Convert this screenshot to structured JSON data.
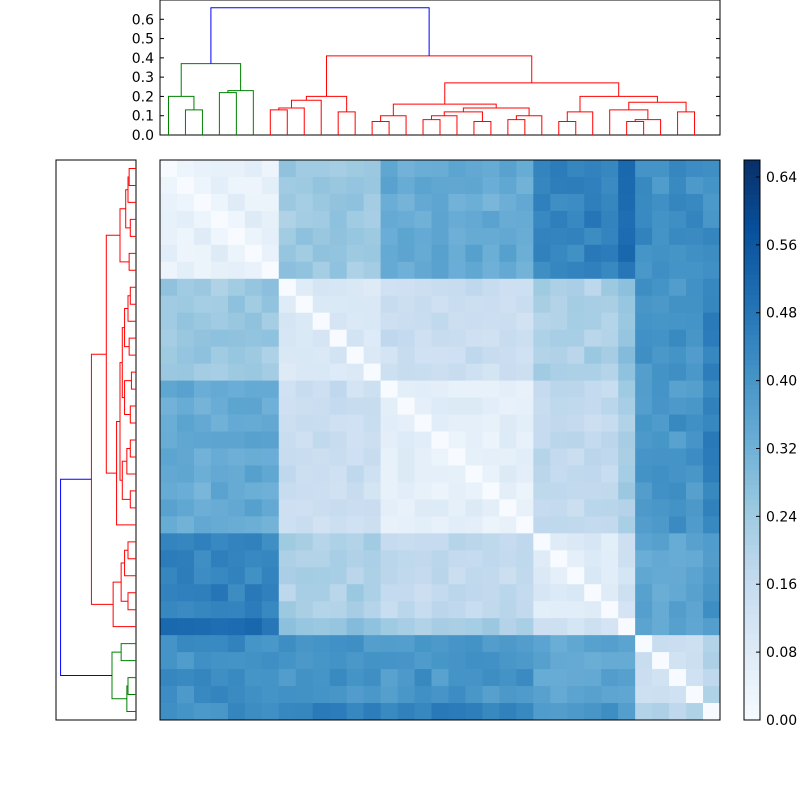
{
  "chart_data": [
    {
      "type": "dendrogram",
      "orientation": "top",
      "yticks": [
        "0.0",
        "0.1",
        "0.2",
        "0.3",
        "0.4",
        "0.5",
        "0.6"
      ],
      "ylim": [
        0,
        0.7
      ],
      "leaf_count": 33,
      "colors": {
        "blue": "#0000ff",
        "green": "#008000",
        "red": "#ff0000"
      },
      "merges": [
        {
          "l": 0,
          "r": 1,
          "h": 0.13,
          "color": "green"
        },
        {
          "l": 0,
          "r": 1,
          "h": 0.13,
          "color": "green"
        }
      ]
    },
    {
      "type": "dendrogram",
      "orientation": "left",
      "leaf_count": 33
    },
    {
      "type": "heatmap",
      "rows": 33,
      "cols": 33,
      "colormap": "Blues",
      "vmin": 0.0,
      "vmax": 0.66,
      "colorbar_ticks": [
        "0.00",
        "0.08",
        "0.16",
        "0.24",
        "0.32",
        "0.40",
        "0.48",
        "0.56",
        "0.64"
      ],
      "colorbar_tick_values": [
        0.0,
        0.08,
        0.16,
        0.24,
        0.32,
        0.4,
        0.48,
        0.56,
        0.64
      ]
    }
  ]
}
